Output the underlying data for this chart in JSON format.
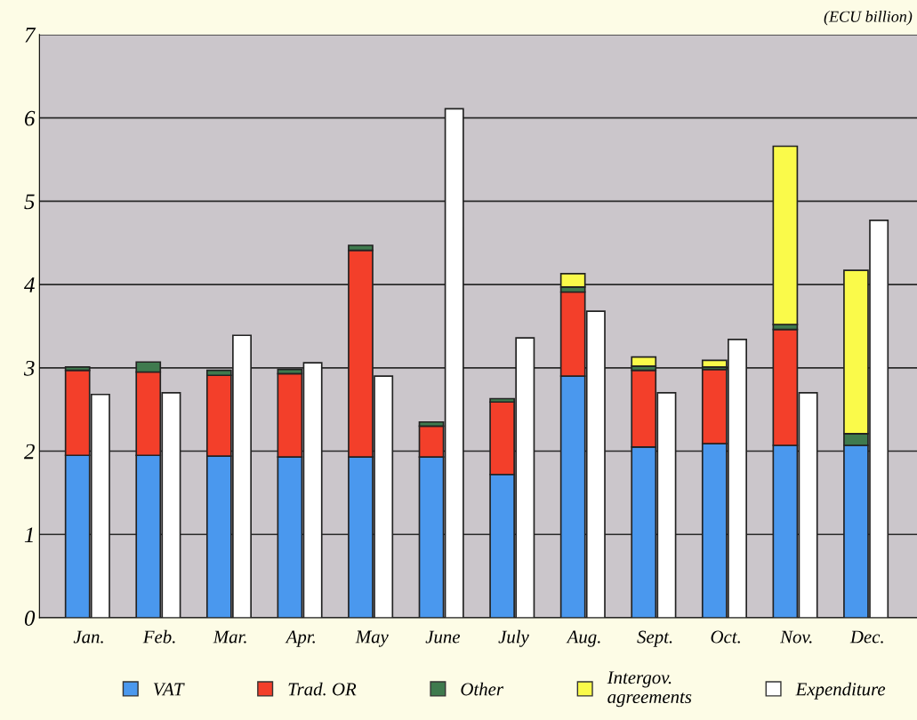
{
  "chart_data": {
    "type": "bar",
    "categories": [
      "Jan.",
      "Feb.",
      "Mar.",
      "Apr.",
      "May",
      "June",
      "July",
      "Aug.",
      "Sept.",
      "Oct.",
      "Nov.",
      "Dec."
    ],
    "series": [
      {
        "name": "VAT",
        "color": "#4a98ee",
        "base": [
          0,
          0,
          0,
          0,
          0,
          0,
          0,
          0,
          0,
          0,
          0,
          0
        ],
        "values": [
          1.95,
          1.95,
          1.94,
          1.93,
          1.93,
          1.93,
          1.72,
          2.9,
          2.05,
          2.09,
          2.07,
          2.07
        ]
      },
      {
        "name": "Trad. OR",
        "color": "#f33f2a",
        "base": [
          1.95,
          1.95,
          1.94,
          1.93,
          1.93,
          1.93,
          1.72,
          2.9,
          2.05,
          2.09,
          2.07,
          null
        ],
        "values": [
          1.02,
          1.0,
          0.97,
          1.0,
          2.48,
          0.37,
          0.87,
          1.01,
          0.92,
          0.89,
          1.39,
          null
        ]
      },
      {
        "name": "Other",
        "color": "#3f7a4e",
        "base": [
          2.97,
          2.95,
          2.91,
          2.93,
          4.41,
          2.3,
          2.59,
          3.91,
          2.97,
          2.98,
          3.46,
          2.07
        ],
        "values": [
          0.04,
          0.12,
          0.06,
          0.05,
          0.06,
          0.05,
          0.04,
          0.06,
          0.05,
          0.03,
          0.06,
          0.14
        ]
      },
      {
        "name": "Intergov.\nagreements",
        "color": "#fafa4a",
        "base": [
          null,
          null,
          null,
          null,
          null,
          null,
          null,
          3.97,
          3.02,
          3.01,
          3.52,
          2.21
        ],
        "values": [
          null,
          null,
          null,
          null,
          null,
          null,
          null,
          0.16,
          0.11,
          0.08,
          2.14,
          1.96
        ]
      },
      {
        "name": "Expenditure",
        "color": "#ffffff",
        "values": [
          2.68,
          2.7,
          3.39,
          3.06,
          2.9,
          6.11,
          3.36,
          3.68,
          2.7,
          3.34,
          2.7,
          4.77
        ]
      }
    ],
    "ylim": [
      0,
      7
    ],
    "yticks": [
      0,
      1,
      2,
      3,
      4,
      5,
      6,
      7
    ],
    "grid": "y",
    "legend": "bottom",
    "annotations": [
      "(ECU billion)"
    ]
  }
}
